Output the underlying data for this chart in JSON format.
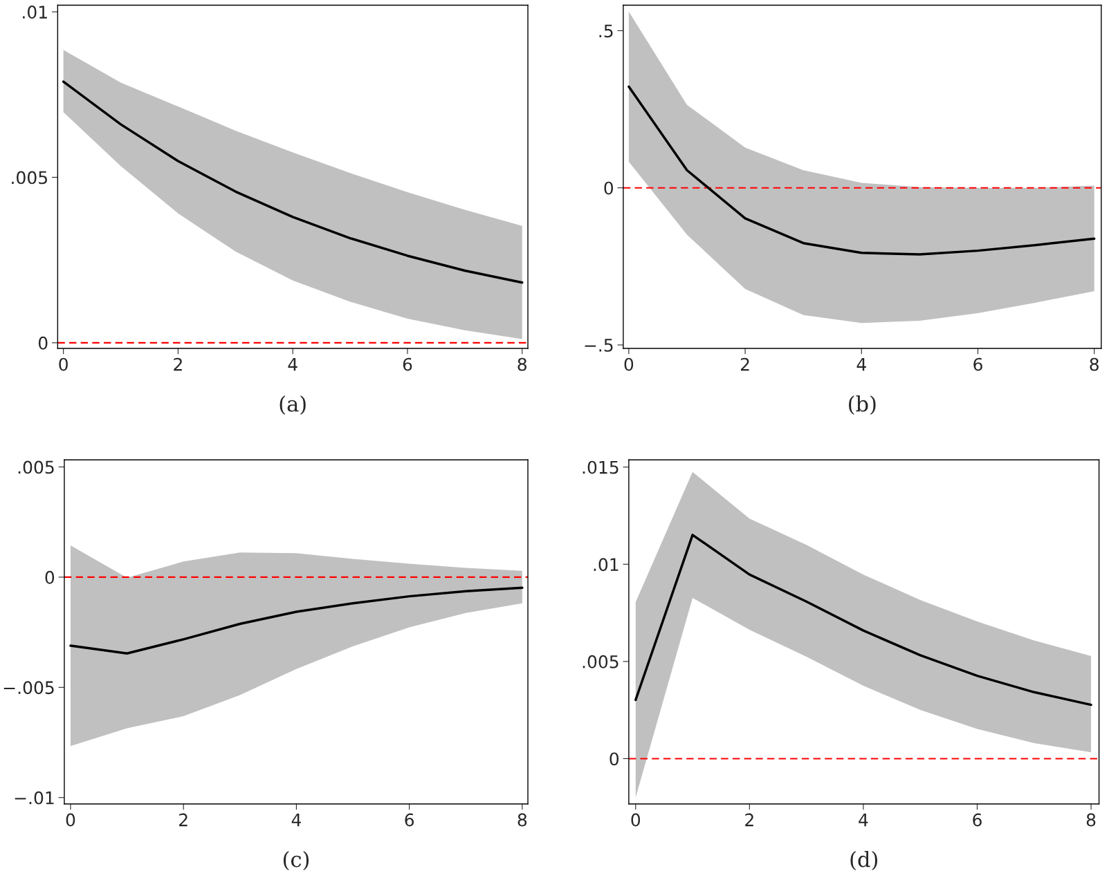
{
  "chart_data": [
    {
      "type": "line",
      "xlabel": "(a)",
      "x": [
        0,
        1,
        2,
        3,
        4,
        5,
        6,
        7,
        8
      ],
      "xlim": [
        -0.1,
        8.1
      ],
      "xticks": [
        0,
        2,
        4,
        6,
        8
      ],
      "ylim": [
        -0.00017,
        0.0102
      ],
      "yticks": [
        {
          "value": 0,
          "label": "0"
        },
        {
          "value": 0.005,
          "label": ".005"
        },
        {
          "value": 0.01,
          "label": ".01"
        }
      ],
      "grid": false,
      "series": [
        {
          "color": "#000000",
          "values": [
            0.00789,
            0.0066,
            0.00549,
            0.00457,
            0.0038,
            0.00316,
            0.00263,
            0.00218,
            0.00182
          ],
          "lower": [
            0.00697,
            0.00534,
            0.00391,
            0.00276,
            0.00188,
            0.00124,
            0.00073,
            0.00038,
            0.00011
          ],
          "upper": [
            0.00885,
            0.00786,
            0.00714,
            0.00641,
            0.00575,
            0.00513,
            0.00455,
            0.00402,
            0.00353
          ]
        }
      ],
      "ref_lines": [
        {
          "axis": "y",
          "value": 0,
          "color": "#ff0000",
          "line_style": "dashed"
        }
      ]
    },
    {
      "type": "line",
      "xlabel": "(b)",
      "x": [
        0,
        1,
        2,
        3,
        4,
        5,
        6,
        7,
        8
      ],
      "xlim": [
        -0.095,
        8.12
      ],
      "xticks": [
        0,
        2,
        4,
        6,
        8
      ],
      "ylim": [
        -0.511,
        0.581
      ],
      "yticks": [
        {
          "value": -0.5,
          "label": "−.5"
        },
        {
          "value": 0,
          "label": "0"
        },
        {
          "value": 0.5,
          "label": ".5"
        }
      ],
      "grid": false,
      "series": [
        {
          "color": "#000000",
          "values": [
            0.322,
            0.056,
            -0.097,
            -0.176,
            -0.207,
            -0.212,
            -0.2,
            -0.182,
            -0.162
          ],
          "lower": [
            0.083,
            -0.149,
            -0.322,
            -0.405,
            -0.43,
            -0.423,
            -0.399,
            -0.365,
            -0.329
          ],
          "upper": [
            0.561,
            0.264,
            0.128,
            0.056,
            0.016,
            0.002,
            0.0,
            0.0,
            0.007
          ]
        }
      ],
      "ref_lines": [
        {
          "axis": "y",
          "value": 0,
          "color": "#ff0000",
          "line_style": "dashed"
        }
      ]
    },
    {
      "type": "line",
      "xlabel": "(c)",
      "x": [
        0,
        1,
        2,
        3,
        4,
        5,
        6,
        7,
        8
      ],
      "xlim": [
        -0.11,
        8.1
      ],
      "xticks": [
        0,
        2,
        4,
        6,
        8
      ],
      "ylim": [
        -0.01029,
        0.00532
      ],
      "yticks": [
        {
          "value": -0.01,
          "label": "−.01"
        },
        {
          "value": -0.005,
          "label": "−.005"
        },
        {
          "value": 0,
          "label": "0"
        },
        {
          "value": 0.005,
          "label": ".005"
        }
      ],
      "grid": false,
      "series": [
        {
          "color": "#000000",
          "values": [
            -0.00311,
            -0.00346,
            -0.00282,
            -0.00212,
            -0.00157,
            -0.00119,
            -0.00087,
            -0.00064,
            -0.00048
          ],
          "lower": [
            -0.00766,
            -0.00686,
            -0.00631,
            -0.00535,
            -0.00417,
            -0.00314,
            -0.00228,
            -0.00163,
            -0.00119
          ],
          "upper": [
            0.00144,
            -3e-05,
            0.00071,
            0.00112,
            0.00109,
            0.00083,
            0.00061,
            0.00042,
            0.00029
          ]
        }
      ],
      "ref_lines": [
        {
          "axis": "y",
          "value": 0,
          "color": "#ff0000",
          "line_style": "dashed"
        }
      ]
    },
    {
      "type": "line",
      "xlabel": "(d)",
      "x": [
        0,
        1,
        2,
        3,
        4,
        5,
        6,
        7,
        8
      ],
      "xlim": [
        -0.12,
        8.14
      ],
      "xticks": [
        0,
        2,
        4,
        6,
        8
      ],
      "ylim": [
        -0.00233,
        0.01537
      ],
      "yticks": [
        {
          "value": 0,
          "label": "0"
        },
        {
          "value": 0.005,
          "label": ".005"
        },
        {
          "value": 0.01,
          "label": ".01"
        },
        {
          "value": 0.015,
          "label": ".015"
        }
      ],
      "grid": false,
      "series": [
        {
          "color": "#000000",
          "values": [
            0.00302,
            0.01151,
            0.00947,
            0.00808,
            0.00659,
            0.00532,
            0.00426,
            0.00342,
            0.00277
          ],
          "lower": [
            -0.002,
            0.00827,
            0.00663,
            0.00524,
            0.00375,
            0.00251,
            0.00153,
            0.0008,
            0.00033
          ],
          "upper": [
            0.00805,
            0.01475,
            0.01235,
            0.011,
            0.00947,
            0.00816,
            0.00706,
            0.00608,
            0.00528
          ]
        }
      ],
      "ref_lines": [
        {
          "axis": "y",
          "value": 0,
          "color": "#ff0000",
          "line_style": "dashed"
        }
      ]
    }
  ]
}
